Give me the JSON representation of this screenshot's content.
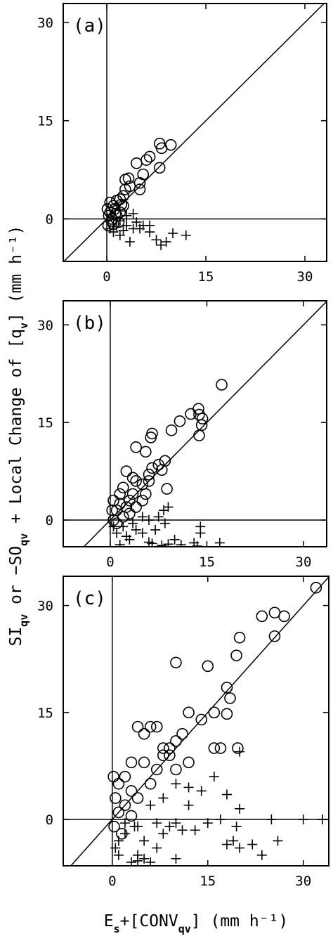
{
  "figure": {
    "ylabel": [
      {
        "text": "SI",
        "sub": false
      },
      {
        "text": "qv",
        "sub": true
      },
      {
        "text": " or −SO",
        "sub": false
      },
      {
        "text": "qv",
        "sub": true
      },
      {
        "text": " + Local Change of [q",
        "sub": false
      },
      {
        "text": "v",
        "sub": true
      },
      {
        "text": "] (mm h⁻¹)",
        "sub": false
      }
    ],
    "xlabel": [
      {
        "text": "E",
        "sub": false
      },
      {
        "text": "s",
        "sub": true
      },
      {
        "text": "+[CONV",
        "sub": false
      },
      {
        "text": "qv",
        "sub": true
      },
      {
        "text": "] (mm h⁻¹)",
        "sub": false
      }
    ]
  },
  "chart_data": [
    {
      "type": "scatter",
      "label": "(a)",
      "xlim": [
        -6.6,
        33.3
      ],
      "ylim": [
        -6.5,
        32.9
      ],
      "xticks": [
        0,
        15,
        30
      ],
      "yticks": [
        0,
        15,
        30
      ],
      "series": [
        {
          "marker": "circle",
          "color": "#000000",
          "x": [
            9.7,
            8,
            8.3,
            8,
            6.5,
            6,
            5.5,
            4.5,
            5,
            5,
            3.3,
            2.8,
            3.5,
            2.8,
            2.5,
            2,
            1.5,
            1,
            1.2,
            0.5,
            0.3,
            0.8,
            1.5,
            2,
            0.2,
            1,
            0.5,
            1.8,
            2.5,
            0.1,
            1.3,
            2.2,
            0.7
          ],
          "values": [
            11.3,
            11.5,
            10.8,
            7.8,
            9.5,
            9,
            6.8,
            8.5,
            5.5,
            4.5,
            6.2,
            6,
            5,
            4.5,
            3.5,
            3,
            2.8,
            2,
            1.5,
            1,
            0.5,
            0,
            0.5,
            1,
            -1,
            -0.8,
            2.5,
            -0.5,
            2,
            1.5,
            0.8,
            2.2,
            -0.3
          ]
        },
        {
          "marker": "plus",
          "color": "#000000",
          "x": [
            12,
            10,
            9,
            7.5,
            8.2,
            6.5,
            5.5,
            3.5,
            4,
            3,
            4.5,
            2.5,
            3,
            4,
            5,
            1.5,
            1,
            2,
            0.5,
            2,
            6.5
          ],
          "values": [
            -2.5,
            -2.2,
            -3.5,
            -3.2,
            -4,
            -2,
            -1,
            -3.5,
            -1.5,
            -1,
            -0.5,
            -1.8,
            0.5,
            0.8,
            -1.5,
            -1.2,
            -2,
            -0.3,
            -1.5,
            -2.5,
            -1
          ]
        }
      ]
    },
    {
      "type": "scatter",
      "label": "(b)",
      "xlim": [
        -7.3,
        33.6
      ],
      "ylim": [
        -4.1,
        33.7
      ],
      "xticks": [
        0,
        15,
        30
      ],
      "yticks": [
        0,
        15,
        30
      ],
      "series": [
        {
          "marker": "circle",
          "color": "#000000",
          "x": [
            17.3,
            13.8,
            13.7,
            14.3,
            14.2,
            13.8,
            12.5,
            10.8,
            9.5,
            6.5,
            6.3,
            4,
            5.5,
            8.5,
            7.5,
            6.5,
            8,
            6,
            8.8,
            6,
            5,
            4,
            3.5,
            2.5,
            2,
            3,
            1.5,
            1,
            0.5,
            2,
            0.5,
            1,
            3,
            4,
            5,
            0.3,
            2.5,
            1.5,
            3.5,
            5.5
          ],
          "values": [
            20.8,
            16.2,
            17.1,
            15.6,
            14.6,
            13,
            16.3,
            15.2,
            13.8,
            13.3,
            12.7,
            11.2,
            10.5,
            9.1,
            8.5,
            8,
            7.7,
            7,
            4.8,
            6,
            5.5,
            6,
            4,
            7.5,
            5,
            3,
            2.5,
            1.5,
            3,
            0.5,
            0,
            -0.5,
            1,
            2,
            3,
            1.5,
            2,
            4,
            6.5,
            4
          ]
        },
        {
          "marker": "plus",
          "color": "#000000",
          "x": [
            17,
            14,
            14,
            13,
            13.5,
            11,
            10,
            9,
            8,
            6.5,
            6,
            1.5,
            3,
            5,
            7,
            8.5,
            9,
            8.3,
            6,
            4,
            2.5,
            1,
            0.5,
            2,
            3.5,
            5,
            7.5
          ],
          "values": [
            -3.5,
            -2,
            -1,
            -3.5,
            -4,
            -3.8,
            -3,
            -3.7,
            -3.9,
            -3.6,
            -3.4,
            -3.8,
            -3,
            -2,
            -1.5,
            -0.5,
            2,
            1.5,
            0,
            -1.5,
            -2.5,
            -2,
            -1,
            -1,
            -0.5,
            0.5,
            0.5
          ]
        }
      ]
    },
    {
      "type": "scatter",
      "label": "(c)",
      "xlim": [
        -7.7,
        34
      ],
      "ylim": [
        -6.5,
        34.1
      ],
      "xticks": [
        0,
        15,
        30
      ],
      "yticks": [
        0,
        15,
        30
      ],
      "series": [
        {
          "marker": "circle",
          "color": "#000000",
          "x": [
            32,
            25.5,
            27,
            23.5,
            25.5,
            20,
            19.5,
            18,
            18.5,
            18,
            19.7,
            17,
            16,
            16,
            14,
            15,
            10,
            12,
            11,
            10,
            9,
            8,
            7,
            6,
            5,
            4,
            3,
            5,
            7,
            8,
            9,
            10,
            12,
            2,
            1,
            3,
            0.5,
            1,
            2,
            3,
            0.3,
            1.5,
            4,
            6,
            0.2
          ],
          "values": [
            32.5,
            29,
            28.5,
            28.5,
            25.7,
            25.5,
            23,
            18.5,
            17,
            14.8,
            10,
            10,
            10,
            15,
            14,
            21.5,
            22,
            15,
            12,
            11,
            10,
            9,
            13,
            13,
            12,
            13,
            8,
            8,
            7,
            10,
            9,
            7,
            8,
            6,
            5,
            4,
            3,
            1,
            2,
            0.5,
            -1,
            -2,
            3,
            5,
            6
          ]
        },
        {
          "marker": "plus",
          "color": "#000000",
          "x": [
            33,
            30,
            25,
            26,
            23.5,
            22,
            20,
            19,
            18,
            20,
            19.5,
            17,
            15,
            13,
            11,
            10,
            9,
            8,
            7,
            6,
            5,
            4,
            3,
            1,
            0.5,
            2,
            4,
            6,
            8,
            10,
            12,
            14,
            16,
            18,
            20,
            12,
            2,
            1,
            5,
            10,
            4,
            3.5,
            7
          ],
          "values": [
            0,
            0,
            0,
            -3,
            -5,
            -3.5,
            -4,
            -3,
            -3.5,
            1.5,
            -1,
            0,
            -0.5,
            -1.5,
            -1.5,
            -0.5,
            -1,
            -2,
            -4,
            -6,
            -3,
            -5,
            -6,
            -5,
            -4,
            -2,
            -1,
            2,
            3,
            5,
            2,
            4,
            6,
            3.5,
            9.5,
            4.5,
            -0.5,
            -3,
            -5.5,
            -5.5,
            -5.8,
            -1,
            -0.5
          ]
        }
      ]
    }
  ]
}
